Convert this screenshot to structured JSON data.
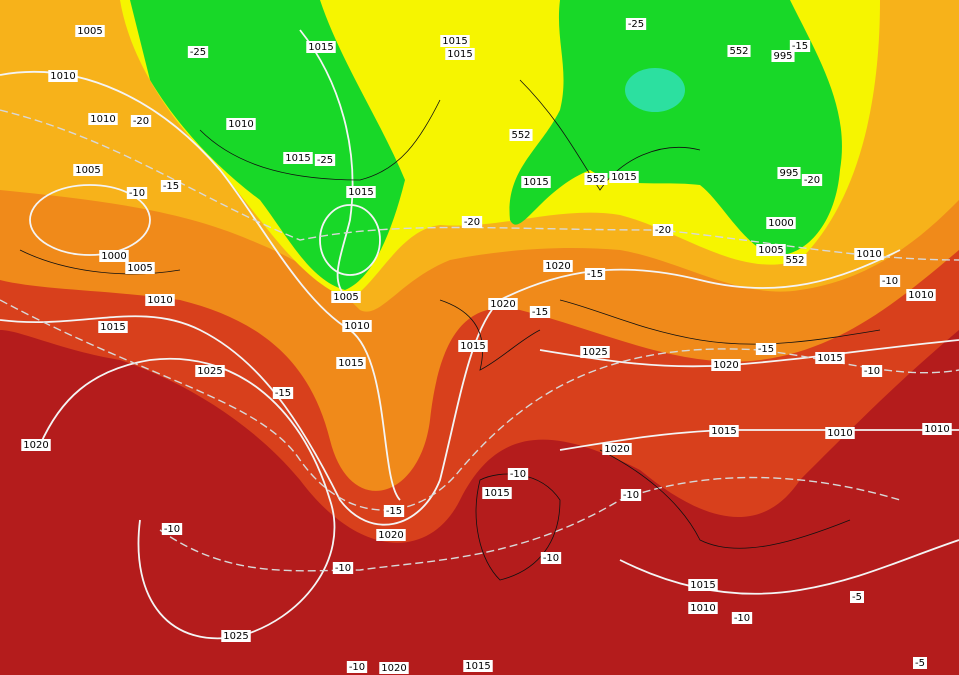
{
  "map": {
    "labels": [
      "1005",
      "1010",
      "1010",
      "-20",
      "1005",
      "-10",
      "-15",
      "1000",
      "1005",
      "1010",
      "1015",
      "-25",
      "1015",
      "1015",
      "1015",
      "1010",
      "552",
      "1015",
      "-25",
      "1015",
      "-20",
      "1015",
      "552",
      "1015",
      "-25",
      "552",
      "-15",
      "995",
      "995",
      "-20",
      "1000",
      "1005",
      "552",
      "-20",
      "1010",
      "-10",
      "1010",
      "1020",
      "-15",
      "1020",
      "-15",
      "1005",
      "1010",
      "1015",
      "1025",
      "-15",
      "1015",
      "1020",
      "-10",
      "1015",
      "1025",
      "-15",
      "1015",
      "1010",
      "1010",
      "1020",
      "1020",
      "-10",
      "1015",
      "-10",
      "-15",
      "-10",
      "1020",
      "-10",
      "-10",
      "1015",
      "-5",
      "1010",
      "-10",
      "1025",
      "-10",
      "1020",
      "1015",
      "-5"
    ]
  }
}
